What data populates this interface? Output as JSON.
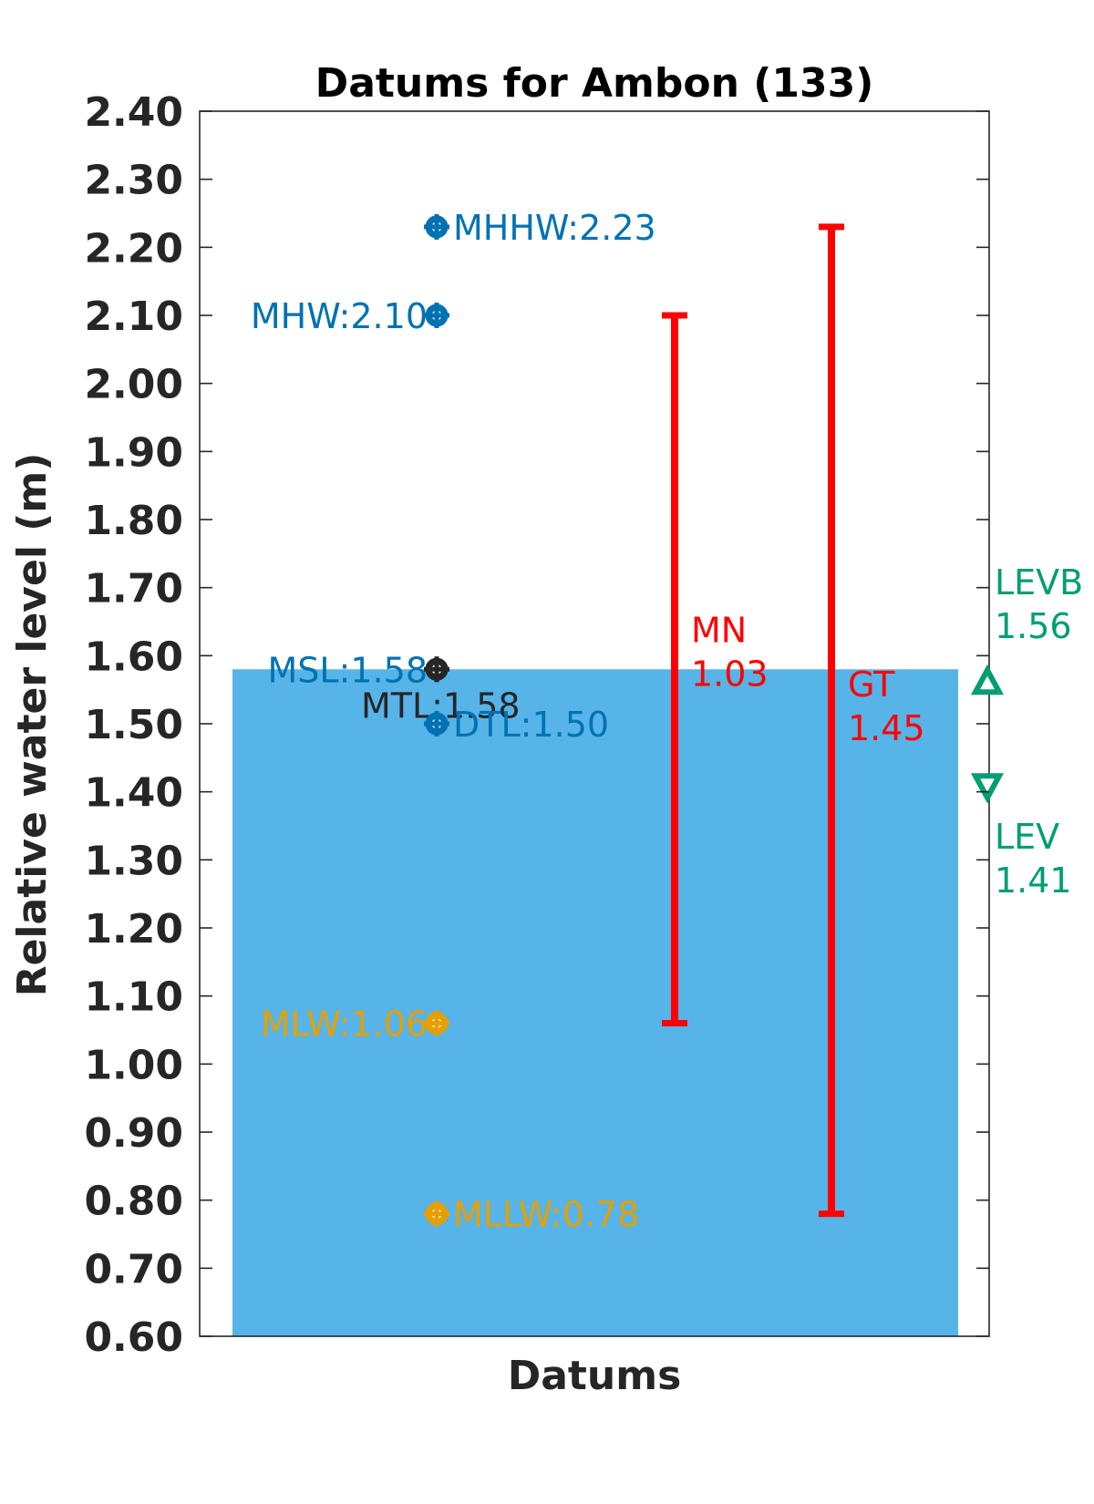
{
  "chart_data": {
    "type": "bar",
    "title": "Datums for Ambon (133)",
    "xlabel": "Datums",
    "ylabel": "Relative water level (m)",
    "ylim": [
      0.6,
      2.4
    ],
    "y_ticks": [
      "0.60",
      "0.70",
      "0.80",
      "0.90",
      "1.00",
      "1.10",
      "1.20",
      "1.30",
      "1.40",
      "1.50",
      "1.60",
      "1.70",
      "1.80",
      "1.90",
      "2.00",
      "2.10",
      "2.20",
      "2.30",
      "2.40"
    ],
    "grid": false,
    "bar": {
      "value": 1.58,
      "color": "#56B4E9"
    },
    "datums": [
      {
        "label": "MHHW:2.23",
        "value": 2.23,
        "color": "#0072B2",
        "label_side": "right"
      },
      {
        "label": "MHW:2.10",
        "value": 2.1,
        "color": "#0072B2",
        "label_side": "left"
      },
      {
        "label": "MSL:1.58",
        "value": 1.58,
        "color": "#0072B2",
        "label_side": "left"
      },
      {
        "label": "MTL:1.58",
        "value": 1.58,
        "color": "#262626",
        "label_side": "below"
      },
      {
        "label": "DTL:1.50",
        "value": 1.5,
        "color": "#0072B2",
        "label_side": "right"
      },
      {
        "label": "MLW:1.06",
        "value": 1.06,
        "color": "#E69F00",
        "label_side": "left"
      },
      {
        "label": "MLLW:0.78",
        "value": 0.78,
        "color": "#E69F00",
        "label_side": "right"
      }
    ],
    "ranges": [
      {
        "name": "MN",
        "value": "1.03",
        "low": 1.06,
        "high": 2.1,
        "color": "#FF0000"
      },
      {
        "name": "GT",
        "value": "1.45",
        "low": 0.78,
        "high": 2.23,
        "color": "#FF0000"
      }
    ],
    "extremes": [
      {
        "name": "LEVB",
        "value": "1.56",
        "level": 1.56,
        "marker": "triangle-up",
        "color": "#009E73"
      },
      {
        "name": "LEV",
        "value": "1.41",
        "level": 1.41,
        "marker": "triangle-down",
        "color": "#009E73"
      }
    ]
  }
}
